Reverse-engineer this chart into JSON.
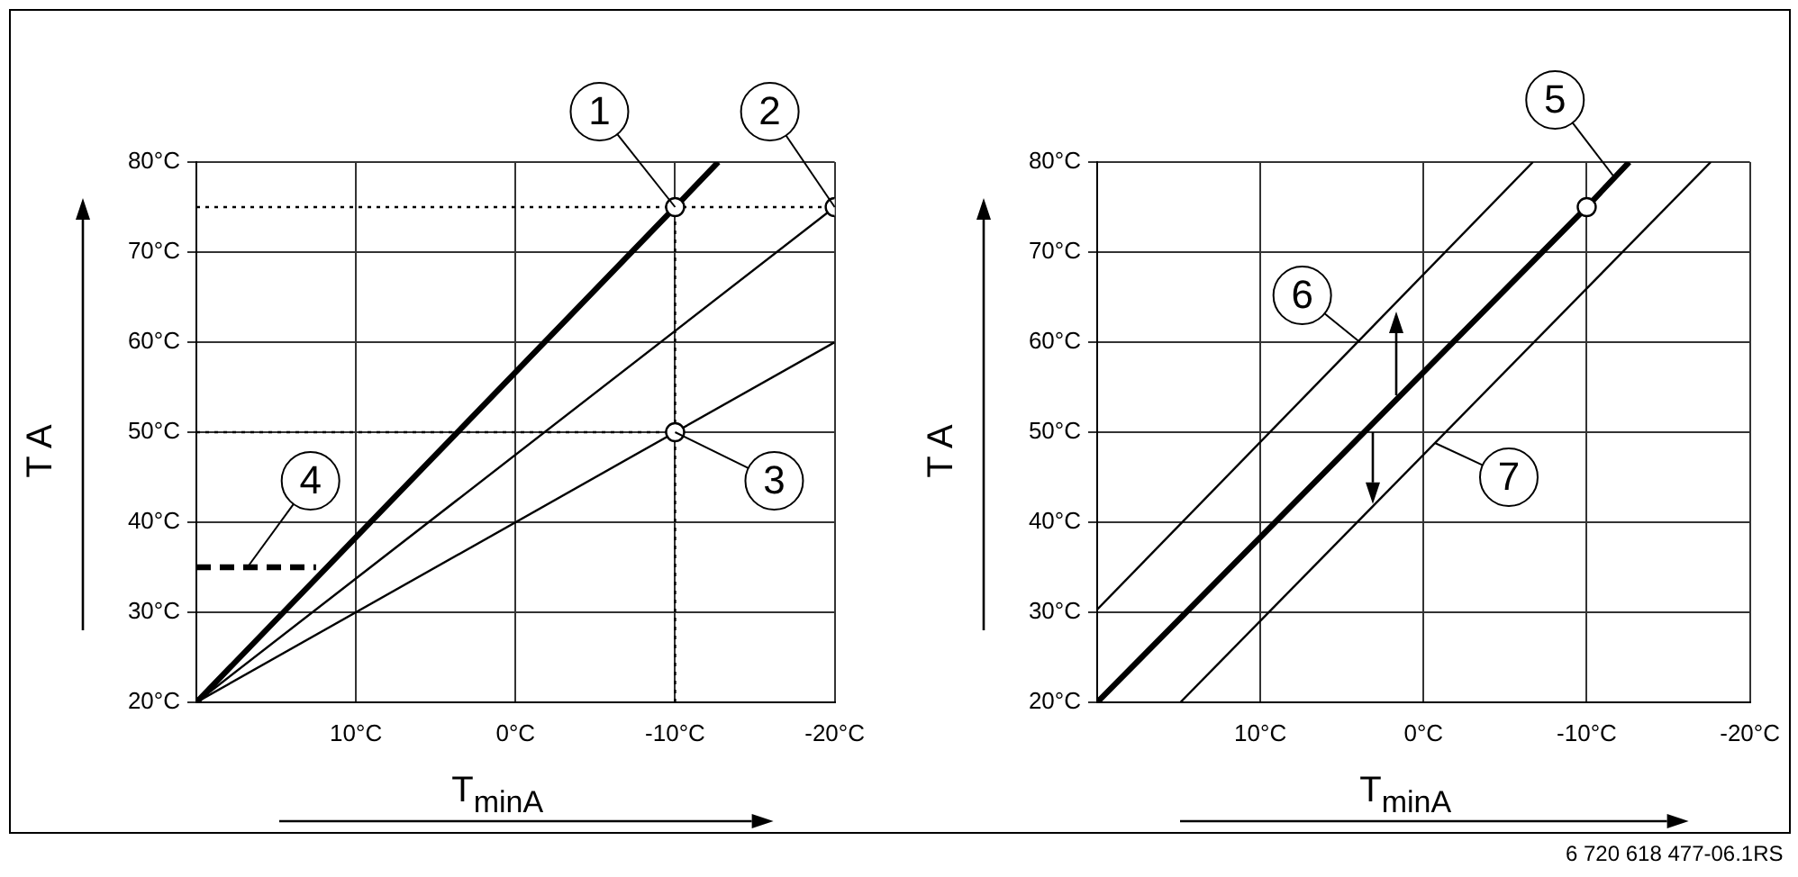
{
  "chart_data": [
    {
      "type": "line",
      "xlabel": "T$_{minA}$",
      "ylabel": "T A",
      "xlim": [
        20,
        -20
      ],
      "ylim": [
        20,
        80
      ],
      "xticks": [
        {
          "value": 20,
          "label": null
        },
        {
          "value": 10,
          "label": "10°C"
        },
        {
          "value": 0,
          "label": "0°C"
        },
        {
          "value": -10,
          "label": "-10°C"
        },
        {
          "value": -20,
          "label": "-20°C"
        }
      ],
      "yticks": [
        {
          "value": 20,
          "label": "20°C"
        },
        {
          "value": 30,
          "label": "30°C"
        },
        {
          "value": 40,
          "label": "40°C"
        },
        {
          "value": 50,
          "label": "50°C"
        },
        {
          "value": 60,
          "label": "60°C"
        },
        {
          "value": 70,
          "label": "70°C"
        },
        {
          "value": 80,
          "label": "80°C"
        }
      ],
      "grid": true,
      "legend": false,
      "series": [
        {
          "color": "#000000",
          "x": [
            20,
            -10,
            -12.7
          ],
          "values": [
            20,
            75,
            80
          ]
        },
        {
          "color": "#000000",
          "x": [
            20,
            -20
          ],
          "values": [
            20,
            75
          ]
        },
        {
          "color": "#000000",
          "x": [
            20,
            -20
          ],
          "values": [
            20,
            60
          ]
        },
        {
          "color": "#000000",
          "line_style": "dashed",
          "x": [
            20,
            12.5
          ],
          "values": [
            35,
            35
          ]
        },
        {
          "color": "#000000",
          "line_style": "dotted",
          "x": [
            20,
            -20
          ],
          "values": [
            75,
            75
          ]
        },
        {
          "color": "#000000",
          "line_style": "dotted",
          "x": [
            -10,
            -10
          ],
          "values": [
            20,
            75
          ]
        },
        {
          "color": "#000000",
          "line_style": "dotted",
          "x": [
            20,
            -10
          ],
          "values": [
            50,
            50
          ]
        },
        {
          "type": "scatter",
          "color": "#000000",
          "marker": "circle",
          "x": [
            -10,
            -20,
            -10
          ],
          "values": [
            75,
            75,
            50
          ]
        }
      ],
      "annotations": [
        {
          "text": "1",
          "x": -10,
          "y": 75
        },
        {
          "text": "2",
          "x": -20,
          "y": 75
        },
        {
          "text": "3",
          "x": -10,
          "y": 50
        },
        {
          "text": "4",
          "x": 16.8,
          "y": 35
        }
      ]
    },
    {
      "type": "line",
      "xlabel": "T$_{minA}$",
      "ylabel": "T A",
      "xlim": [
        20,
        -20
      ],
      "ylim": [
        20,
        80
      ],
      "xticks": [
        {
          "value": 20,
          "label": null
        },
        {
          "value": 10,
          "label": "10°C"
        },
        {
          "value": 0,
          "label": "0°C"
        },
        {
          "value": -10,
          "label": "-10°C"
        },
        {
          "value": -20,
          "label": "-20°C"
        }
      ],
      "yticks": [
        {
          "value": 20,
          "label": "20°C"
        },
        {
          "value": 30,
          "label": "30°C"
        },
        {
          "value": 40,
          "label": "40°C"
        },
        {
          "value": 50,
          "label": "50°C"
        },
        {
          "value": 60,
          "label": "60°C"
        },
        {
          "value": 70,
          "label": "70°C"
        },
        {
          "value": 80,
          "label": "80°C"
        }
      ],
      "grid": true,
      "legend": false,
      "series": [
        {
          "color": "#000000",
          "x": [
            20,
            -10,
            -12.6
          ],
          "values": [
            20,
            75,
            80
          ]
        },
        {
          "color": "#000000",
          "x": [
            20,
            -6.7
          ],
          "values": [
            30.3,
            80
          ]
        },
        {
          "color": "#000000",
          "x": [
            14.9,
            -17.6
          ],
          "values": [
            20,
            80
          ]
        },
        {
          "type": "scatter",
          "color": "#000000",
          "marker": "circle",
          "x": [
            -10
          ],
          "values": [
            75
          ]
        }
      ],
      "annotations": [
        {
          "text": "5",
          "x": -11.7,
          "y": 78.3
        },
        {
          "text": "6",
          "x": 3.9,
          "y": 60
        },
        {
          "text": "7",
          "x": -0.7,
          "y": 48.8
        },
        "6 720 618 477-06.1RS"
      ]
    }
  ]
}
